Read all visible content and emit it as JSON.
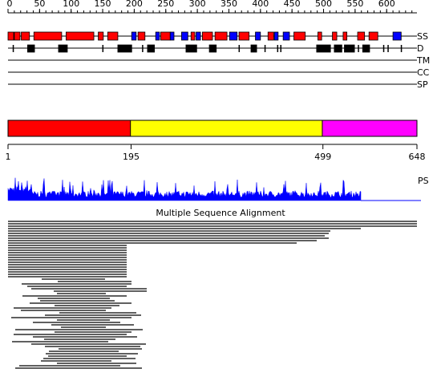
{
  "ruler": {
    "ticks": [
      0,
      50,
      100,
      150,
      200,
      250,
      300,
      350,
      400,
      450,
      500,
      550,
      600
    ]
  },
  "tracks": [
    "SS",
    "D",
    "TM",
    "CC",
    "SP"
  ],
  "secondary_structure": {
    "helix_color": "#ff0000",
    "strand_color": "#0000ff",
    "helices": [
      [
        1,
        9
      ],
      [
        11,
        19
      ],
      [
        22,
        34
      ],
      [
        42,
        85
      ],
      [
        93,
        136
      ],
      [
        144,
        151
      ],
      [
        159,
        174
      ],
      [
        207,
        217
      ],
      [
        243,
        257
      ],
      [
        291,
        296
      ],
      [
        309,
        324
      ],
      [
        329,
        347
      ],
      [
        367,
        382
      ],
      [
        413,
        421
      ],
      [
        454,
        471
      ],
      [
        492,
        497
      ],
      [
        515,
        521
      ],
      [
        532,
        537
      ],
      [
        555,
        565
      ],
      [
        573,
        586
      ]
    ],
    "strands": [
      [
        197,
        203
      ],
      [
        235,
        240
      ],
      [
        258,
        263
      ],
      [
        276,
        285
      ],
      [
        299,
        305
      ],
      [
        352,
        363
      ],
      [
        393,
        400
      ],
      [
        423,
        428
      ],
      [
        437,
        446
      ],
      [
        611,
        623
      ]
    ]
  },
  "disorder": {
    "regions": [
      [
        32,
        42
      ],
      [
        81,
        94
      ],
      [
        175,
        196
      ],
      [
        222,
        232
      ],
      [
        283,
        299
      ],
      [
        320,
        330
      ],
      [
        386,
        394
      ],
      [
        490,
        511
      ],
      [
        518,
        529
      ],
      [
        534,
        549
      ],
      [
        563,
        573
      ]
    ],
    "sites": [
      8,
      150,
      213,
      366,
      407,
      427,
      432,
      555,
      595,
      602,
      623
    ]
  },
  "domains": {
    "boundaries": [
      1,
      195,
      499,
      648
    ],
    "colors": [
      "#ff0000",
      "#ffff00",
      "#ff00ff"
    ]
  },
  "profile_label": "PS",
  "alignment_title": "Multiple Sequence Alignment"
}
